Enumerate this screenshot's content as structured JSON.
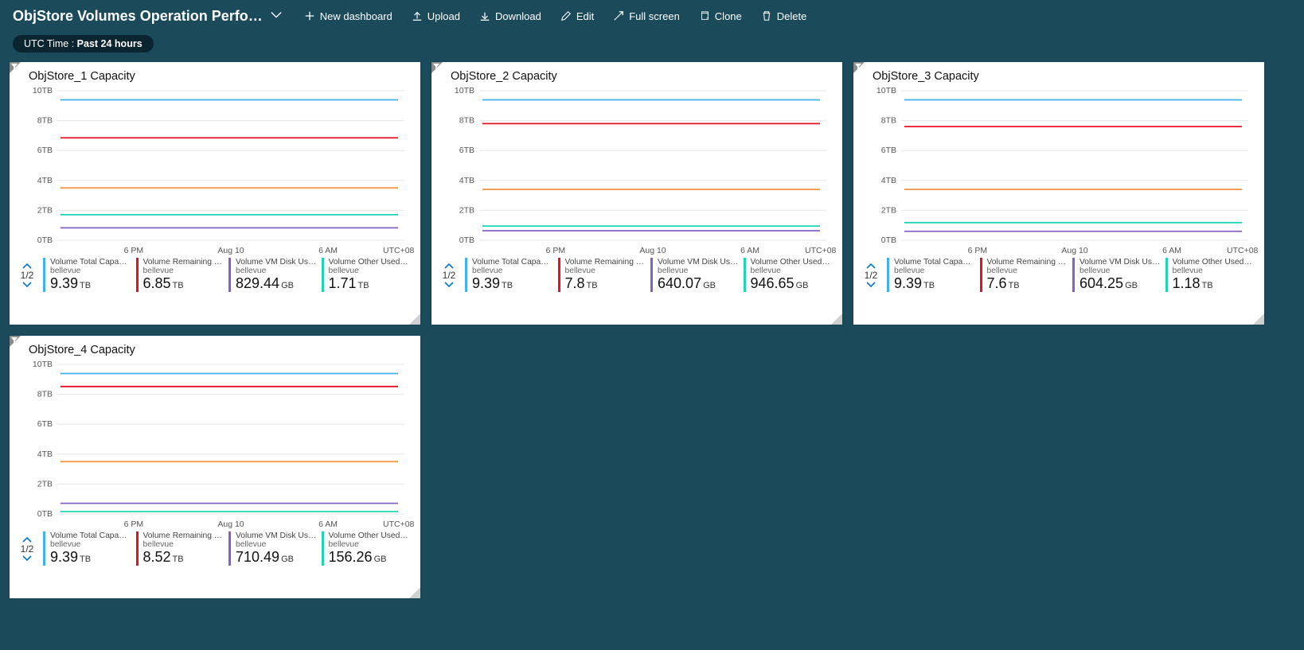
{
  "header": {
    "title": "ObjStore Volumes Operation Perfo…",
    "buttons": {
      "new_dashboard": "New dashboard",
      "upload": "Upload",
      "download": "Download",
      "edit": "Edit",
      "full_screen": "Full screen",
      "clone": "Clone",
      "delete": "Delete"
    },
    "time_pill_prefix": "UTC Time : ",
    "time_pill_value": "Past 24 hours"
  },
  "chart_common": {
    "ylim": [
      0,
      10
    ],
    "ytick_step": 2,
    "y_unit_suffix": "TB",
    "x_labels": [
      "6 PM",
      "Aug 10",
      "6 AM"
    ],
    "tz_label": "UTC+08:00",
    "grid_color": "#e6e6e6",
    "background_color": "#ffffff",
    "label_fontsize": 10.5,
    "line_width": 1.8,
    "pager_text": "1/2",
    "series_meta": [
      {
        "label": "Volume Total Capacit…",
        "sub": "bellevue",
        "color": "#3fb3f0"
      },
      {
        "label": "Volume Remaining Cap…",
        "sub": "bellevue",
        "color": "#e81123"
      },
      {
        "label": "Volume VM Disk Used …",
        "sub": "bellevue",
        "color": "#8661c5"
      },
      {
        "label": "Volume Other Used Ca…",
        "sub": "bellevue",
        "color": "#1ed6b5"
      }
    ]
  },
  "tiles": [
    {
      "title": "ObjStore_1 Capacity",
      "series_values_tb": [
        9.39,
        6.85,
        0.83,
        1.71
      ],
      "extra_line_tb": 3.5,
      "extra_line_color": "#f2994a",
      "legend_values": [
        {
          "num": "9.39",
          "unit": "TB"
        },
        {
          "num": "6.85",
          "unit": "TB"
        },
        {
          "num": "829.44",
          "unit": "GB"
        },
        {
          "num": "1.71",
          "unit": "TB"
        }
      ]
    },
    {
      "title": "ObjStore_2 Capacity",
      "series_values_tb": [
        9.39,
        7.8,
        0.64,
        0.95
      ],
      "extra_line_tb": 3.4,
      "extra_line_color": "#f2994a",
      "legend_values": [
        {
          "num": "9.39",
          "unit": "TB"
        },
        {
          "num": "7.8",
          "unit": "TB"
        },
        {
          "num": "640.07",
          "unit": "GB"
        },
        {
          "num": "946.65",
          "unit": "GB"
        }
      ]
    },
    {
      "title": "ObjStore_3 Capacity",
      "series_values_tb": [
        9.39,
        7.6,
        0.6,
        1.18
      ],
      "extra_line_tb": 3.4,
      "extra_line_color": "#f2994a",
      "legend_values": [
        {
          "num": "9.39",
          "unit": "TB"
        },
        {
          "num": "7.6",
          "unit": "TB"
        },
        {
          "num": "604.25",
          "unit": "GB"
        },
        {
          "num": "1.18",
          "unit": "TB"
        }
      ]
    },
    {
      "title": "ObjStore_4 Capacity",
      "series_values_tb": [
        9.39,
        8.52,
        0.71,
        0.16
      ],
      "extra_line_tb": 3.5,
      "extra_line_color": "#f2994a",
      "legend_values": [
        {
          "num": "9.39",
          "unit": "TB"
        },
        {
          "num": "8.52",
          "unit": "TB"
        },
        {
          "num": "710.49",
          "unit": "GB"
        },
        {
          "num": "156.26",
          "unit": "GB"
        }
      ]
    }
  ]
}
